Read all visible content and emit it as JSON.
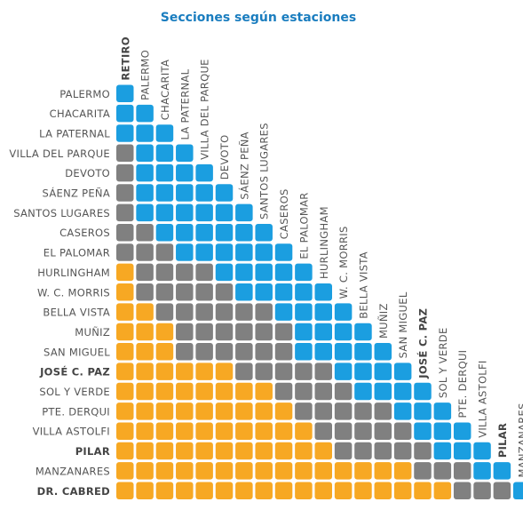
{
  "header": {
    "title": "Secciones según estaciones"
  },
  "columns": [
    {
      "label": "RETIRO",
      "bold": true
    },
    {
      "label": "PALERMO"
    },
    {
      "label": "CHACARITA"
    },
    {
      "label": "LA PATERNAL"
    },
    {
      "label": "VILLA DEL PARQUE"
    },
    {
      "label": "DEVOTO"
    },
    {
      "label": "SÁENZ PEÑA"
    },
    {
      "label": "SANTOS LUGARES"
    },
    {
      "label": "CASEROS"
    },
    {
      "label": "EL PALOMAR"
    },
    {
      "label": "HURLINGHAM"
    },
    {
      "label": "W. C. MORRIS"
    },
    {
      "label": "BELLA VISTA"
    },
    {
      "label": "MUÑIZ"
    },
    {
      "label": "SAN MIGUEL"
    },
    {
      "label": "JOSÉ C. PAZ",
      "bold": true
    },
    {
      "label": "SOL Y VERDE"
    },
    {
      "label": "PTE. DERQUI"
    },
    {
      "label": "VILLA ASTOLFI"
    },
    {
      "label": "PILAR",
      "bold": true
    },
    {
      "label": "MANZANARES"
    }
  ],
  "rows": [
    {
      "label": "PALERMO",
      "cells": [
        "#1b9ee0"
      ]
    },
    {
      "label": "CHACARITA",
      "cells": [
        "#1b9ee0",
        "#1b9ee0"
      ]
    },
    {
      "label": "LA PATERNAL",
      "cells": [
        "#1b9ee0",
        "#1b9ee0",
        "#1b9ee0"
      ]
    },
    {
      "label": "VILLA DEL PARQUE",
      "cells": [
        "#808080",
        "#1b9ee0",
        "#1b9ee0",
        "#1b9ee0"
      ]
    },
    {
      "label": "DEVOTO",
      "cells": [
        "#808080",
        "#1b9ee0",
        "#1b9ee0",
        "#1b9ee0",
        "#1b9ee0"
      ]
    },
    {
      "label": "SÁENZ PEÑA",
      "cells": [
        "#808080",
        "#1b9ee0",
        "#1b9ee0",
        "#1b9ee0",
        "#1b9ee0",
        "#1b9ee0"
      ]
    },
    {
      "label": "SANTOS LUGARES",
      "cells": [
        "#808080",
        "#1b9ee0",
        "#1b9ee0",
        "#1b9ee0",
        "#1b9ee0",
        "#1b9ee0",
        "#1b9ee0"
      ]
    },
    {
      "label": "CASEROS",
      "cells": [
        "#808080",
        "#808080",
        "#1b9ee0",
        "#1b9ee0",
        "#1b9ee0",
        "#1b9ee0",
        "#1b9ee0",
        "#1b9ee0"
      ]
    },
    {
      "label": "EL PALOMAR",
      "cells": [
        "#808080",
        "#808080",
        "#808080",
        "#1b9ee0",
        "#1b9ee0",
        "#1b9ee0",
        "#1b9ee0",
        "#1b9ee0",
        "#1b9ee0"
      ]
    },
    {
      "label": "HURLINGHAM",
      "cells": [
        "#f7a823",
        "#808080",
        "#808080",
        "#808080",
        "#808080",
        "#1b9ee0",
        "#1b9ee0",
        "#1b9ee0",
        "#1b9ee0",
        "#1b9ee0"
      ]
    },
    {
      "label": "W. C. MORRIS",
      "cells": [
        "#f7a823",
        "#808080",
        "#808080",
        "#808080",
        "#808080",
        "#808080",
        "#1b9ee0",
        "#1b9ee0",
        "#1b9ee0",
        "#1b9ee0",
        "#1b9ee0"
      ]
    },
    {
      "label": "BELLA VISTA",
      "cells": [
        "#f7a823",
        "#f7a823",
        "#808080",
        "#808080",
        "#808080",
        "#808080",
        "#808080",
        "#808080",
        "#1b9ee0",
        "#1b9ee0",
        "#1b9ee0",
        "#1b9ee0"
      ]
    },
    {
      "label": "MUÑIZ",
      "cells": [
        "#f7a823",
        "#f7a823",
        "#f7a823",
        "#808080",
        "#808080",
        "#808080",
        "#808080",
        "#808080",
        "#808080",
        "#1b9ee0",
        "#1b9ee0",
        "#1b9ee0",
        "#1b9ee0"
      ]
    },
    {
      "label": "SAN MIGUEL",
      "cells": [
        "#f7a823",
        "#f7a823",
        "#f7a823",
        "#808080",
        "#808080",
        "#808080",
        "#808080",
        "#808080",
        "#808080",
        "#1b9ee0",
        "#1b9ee0",
        "#1b9ee0",
        "#1b9ee0",
        "#1b9ee0"
      ]
    },
    {
      "label": "JOSÉ C. PAZ",
      "bold": true,
      "cells": [
        "#f7a823",
        "#f7a823",
        "#f7a823",
        "#f7a823",
        "#f7a823",
        "#f7a823",
        "#808080",
        "#808080",
        "#808080",
        "#808080",
        "#808080",
        "#1b9ee0",
        "#1b9ee0",
        "#1b9ee0",
        "#1b9ee0"
      ]
    },
    {
      "label": "SOL Y VERDE",
      "cells": [
        "#f7a823",
        "#f7a823",
        "#f7a823",
        "#f7a823",
        "#f7a823",
        "#f7a823",
        "#f7a823",
        "#f7a823",
        "#808080",
        "#808080",
        "#808080",
        "#808080",
        "#1b9ee0",
        "#1b9ee0",
        "#1b9ee0",
        "#1b9ee0"
      ]
    },
    {
      "label": "PTE. DERQUI",
      "cells": [
        "#f7a823",
        "#f7a823",
        "#f7a823",
        "#f7a823",
        "#f7a823",
        "#f7a823",
        "#f7a823",
        "#f7a823",
        "#f7a823",
        "#808080",
        "#808080",
        "#808080",
        "#808080",
        "#808080",
        "#1b9ee0",
        "#1b9ee0",
        "#1b9ee0"
      ]
    },
    {
      "label": "VILLA ASTOLFI",
      "cells": [
        "#f7a823",
        "#f7a823",
        "#f7a823",
        "#f7a823",
        "#f7a823",
        "#f7a823",
        "#f7a823",
        "#f7a823",
        "#f7a823",
        "#f7a823",
        "#808080",
        "#808080",
        "#808080",
        "#808080",
        "#808080",
        "#1b9ee0",
        "#1b9ee0",
        "#1b9ee0"
      ]
    },
    {
      "label": "PILAR",
      "bold": true,
      "cells": [
        "#f7a823",
        "#f7a823",
        "#f7a823",
        "#f7a823",
        "#f7a823",
        "#f7a823",
        "#f7a823",
        "#f7a823",
        "#f7a823",
        "#f7a823",
        "#f7a823",
        "#808080",
        "#808080",
        "#808080",
        "#808080",
        "#808080",
        "#1b9ee0",
        "#1b9ee0",
        "#1b9ee0"
      ]
    },
    {
      "label": "MANZANARES",
      "cells": [
        "#f7a823",
        "#f7a823",
        "#f7a823",
        "#f7a823",
        "#f7a823",
        "#f7a823",
        "#f7a823",
        "#f7a823",
        "#f7a823",
        "#f7a823",
        "#f7a823",
        "#f7a823",
        "#f7a823",
        "#f7a823",
        "#f7a823",
        "#808080",
        "#808080",
        "#808080",
        "#1b9ee0",
        "#1b9ee0"
      ]
    },
    {
      "label": "DR. CABRED",
      "bold": true,
      "cells": [
        "#f7a823",
        "#f7a823",
        "#f7a823",
        "#f7a823",
        "#f7a823",
        "#f7a823",
        "#f7a823",
        "#f7a823",
        "#f7a823",
        "#f7a823",
        "#f7a823",
        "#f7a823",
        "#f7a823",
        "#f7a823",
        "#f7a823",
        "#f7a823",
        "#f7a823",
        "#808080",
        "#808080",
        "#808080",
        "#1b9ee0"
      ]
    }
  ]
}
